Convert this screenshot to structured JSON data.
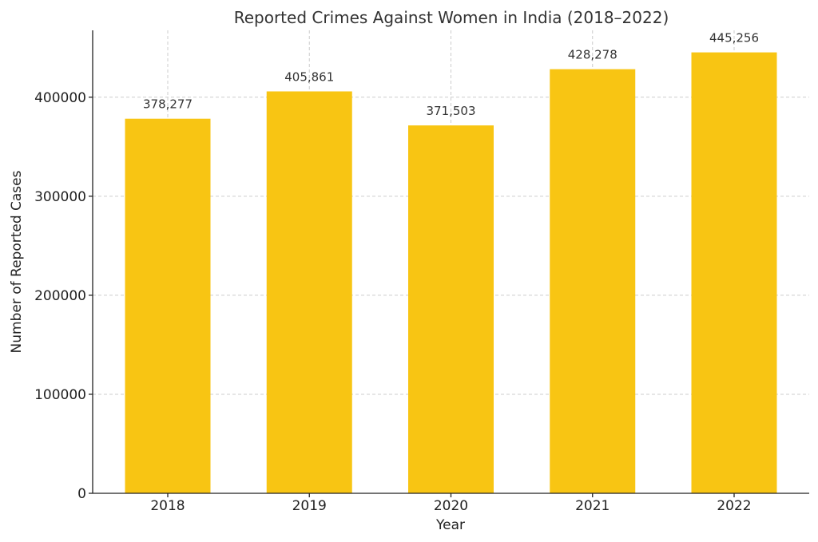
{
  "chart_data": {
    "type": "bar",
    "title": "Reported Crimes Against Women in India (2018–2022)",
    "xlabel": "Year",
    "ylabel": "Number of Reported Cases",
    "categories": [
      "2018",
      "2019",
      "2020",
      "2021",
      "2022"
    ],
    "values": [
      378277,
      405861,
      371503,
      428278,
      445256
    ],
    "value_labels": [
      "378,277",
      "405,861",
      "371,503",
      "428,278",
      "445,256"
    ],
    "yticks": [
      0,
      100000,
      200000,
      300000,
      400000
    ],
    "ytick_labels": [
      "0",
      "100000",
      "200000",
      "300000",
      "400000"
    ],
    "ylim": [
      0,
      467519
    ],
    "grid": true,
    "bar_color": "#f8c513"
  }
}
